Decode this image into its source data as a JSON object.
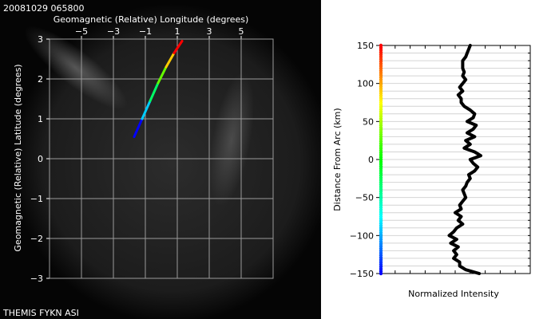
{
  "header": {
    "timestamp": "20081029 065800"
  },
  "footer": {
    "camera_label": "THEMIS FYKN ASI"
  },
  "colors": {
    "panel_background": "#050505",
    "grid": "#9a9a9a",
    "trace": "#000000",
    "axis": "#000000"
  },
  "chart_data": [
    {
      "type": "line",
      "xlabel": "Geomagnetic (Relative) Longitude (degrees)",
      "ylabel": "Geomagnetic (Relative) Latitude (degrees)",
      "xlim": [
        -7,
        7
      ],
      "ylim": [
        -3,
        3
      ],
      "xticks": [
        -5,
        -3,
        -1,
        1,
        3,
        5
      ],
      "yticks": [
        -3,
        -2,
        -1,
        0,
        1,
        2,
        3
      ],
      "xtick_labels": [
        "−5",
        "−3",
        "−1",
        "1",
        "3",
        "5"
      ],
      "ytick_labels": [
        "−3",
        "−2",
        "−1",
        "0",
        "1",
        "2",
        "3"
      ],
      "grid": true,
      "colormap": "rainbow (blue at start, red at end)",
      "series": [
        {
          "x": [
            -1.7,
            -1.2,
            -0.7,
            -0.2,
            0.3,
            0.8,
            1.3
          ],
          "y": [
            0.55,
            1.0,
            1.45,
            1.9,
            2.3,
            2.65,
            2.95
          ]
        }
      ]
    },
    {
      "type": "line",
      "ylabel": "Distance From Arc (km)",
      "xlabel": "Normalized Intensity",
      "ylim": [
        -150,
        150
      ],
      "yticks": [
        -150,
        -100,
        -50,
        0,
        50,
        100,
        150
      ],
      "ytick_labels": [
        "−150",
        "−100",
        "−50",
        "0",
        "50",
        "100",
        "150"
      ],
      "grid": true,
      "colormap": "rainbow (blue at -150, red at 150)",
      "series": [
        {
          "y": [
            150,
            145,
            140,
            135,
            130,
            125,
            120,
            115,
            110,
            105,
            100,
            95,
            90,
            85,
            80,
            75,
            70,
            65,
            60,
            55,
            50,
            45,
            40,
            35,
            30,
            25,
            20,
            15,
            10,
            5,
            0,
            -5,
            -10,
            -15,
            -20,
            -25,
            -30,
            -35,
            -40,
            -45,
            -50,
            -55,
            -60,
            -65,
            -70,
            -75,
            -80,
            -85,
            -90,
            -95,
            -100,
            -105,
            -110,
            -115,
            -120,
            -125,
            -130,
            -135,
            -140,
            -145,
            -150
          ],
          "x": [
            0.6,
            0.59,
            0.58,
            0.57,
            0.55,
            0.55,
            0.55,
            0.56,
            0.55,
            0.57,
            0.55,
            0.53,
            0.55,
            0.52,
            0.54,
            0.54,
            0.56,
            0.6,
            0.63,
            0.62,
            0.58,
            0.64,
            0.62,
            0.58,
            0.63,
            0.57,
            0.6,
            0.56,
            0.63,
            0.67,
            0.6,
            0.62,
            0.65,
            0.63,
            0.59,
            0.6,
            0.58,
            0.57,
            0.55,
            0.56,
            0.57,
            0.55,
            0.53,
            0.54,
            0.5,
            0.54,
            0.52,
            0.55,
            0.51,
            0.49,
            0.46,
            0.51,
            0.47,
            0.52,
            0.49,
            0.51,
            0.49,
            0.53,
            0.53,
            0.57,
            0.66
          ]
        }
      ]
    }
  ]
}
